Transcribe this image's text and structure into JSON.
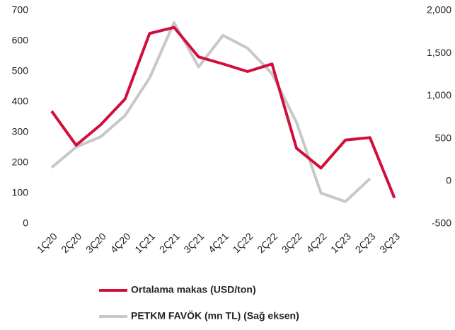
{
  "chart_data": {
    "type": "line",
    "categories": [
      "1Ç20",
      "2Ç20",
      "3Ç20",
      "4Ç20",
      "1Ç21",
      "2Ç21",
      "3Ç21",
      "4Ç21",
      "1Ç22",
      "2Ç22",
      "3Ç22",
      "4Ç22",
      "1Ç23",
      "2Ç23",
      "3Ç23"
    ],
    "series": [
      {
        "name": "Ortalama makas (USD/ton)",
        "color": "#d0103a",
        "values": [
          370,
          258,
          325,
          410,
          625,
          645,
          548,
          525,
          500,
          525,
          248,
          183,
          275,
          283,
          85
        ]
      },
      {
        "name": "PETKM FAVÖK (mn TL) (Sağ eksen)",
        "color": "#c8c8c8",
        "axis": "y2",
        "values": [
          160,
          400,
          520,
          770,
          1210,
          1860,
          1340,
          1710,
          1560,
          1260,
          690,
          -140,
          -240,
          30,
          null
        ]
      }
    ],
    "ylim": [
      0,
      700
    ],
    "yticks": [
      0,
      100,
      200,
      300,
      400,
      500,
      600,
      700
    ],
    "y2lim": [
      -500,
      2000
    ],
    "y2ticks": [
      -500,
      0,
      500,
      {
        "value": 1000,
        "label": "1,000"
      },
      {
        "value": 1500,
        "label": "1,500"
      },
      {
        "value": 2000,
        "label": "2,000"
      }
    ],
    "grid": false
  }
}
